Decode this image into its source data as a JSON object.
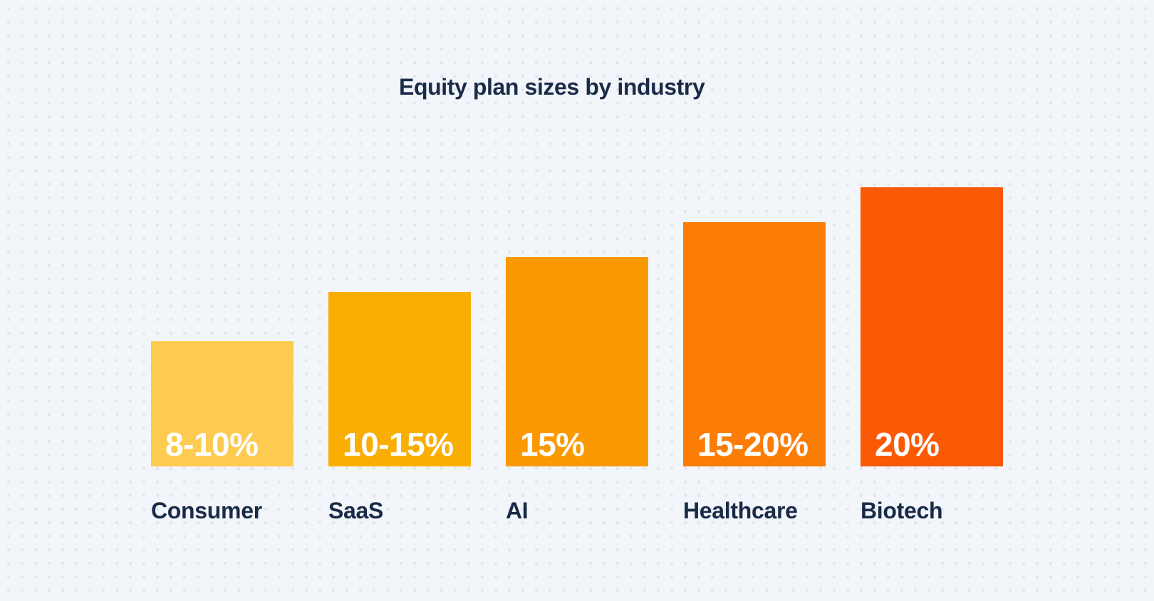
{
  "page": {
    "background_color": "#F2F5F9",
    "dot_grid_color": "#E3E6ED",
    "text_color": "#1A2B47"
  },
  "chart_data": {
    "type": "bar",
    "title": "Equity plan sizes by industry",
    "categories": [
      "Consumer",
      "SaaS",
      "AI",
      "Healthcare",
      "Biotech"
    ],
    "values": [
      9,
      12.5,
      15,
      17.5,
      20
    ],
    "value_labels": [
      "8-10%",
      "10-15%",
      "15%",
      "15-20%",
      "20%"
    ],
    "bar_colors": [
      "#FDCB4F",
      "#FAAD03",
      "#FB9903",
      "#FB7D05",
      "#FA5A05"
    ],
    "value_label_color": "#FFFFFF",
    "xlabel": "",
    "ylabel": "",
    "ylim": [
      0,
      20
    ],
    "grid": "dot-pattern-background",
    "legend": "none",
    "orientation": "vertical",
    "unit": "%"
  }
}
